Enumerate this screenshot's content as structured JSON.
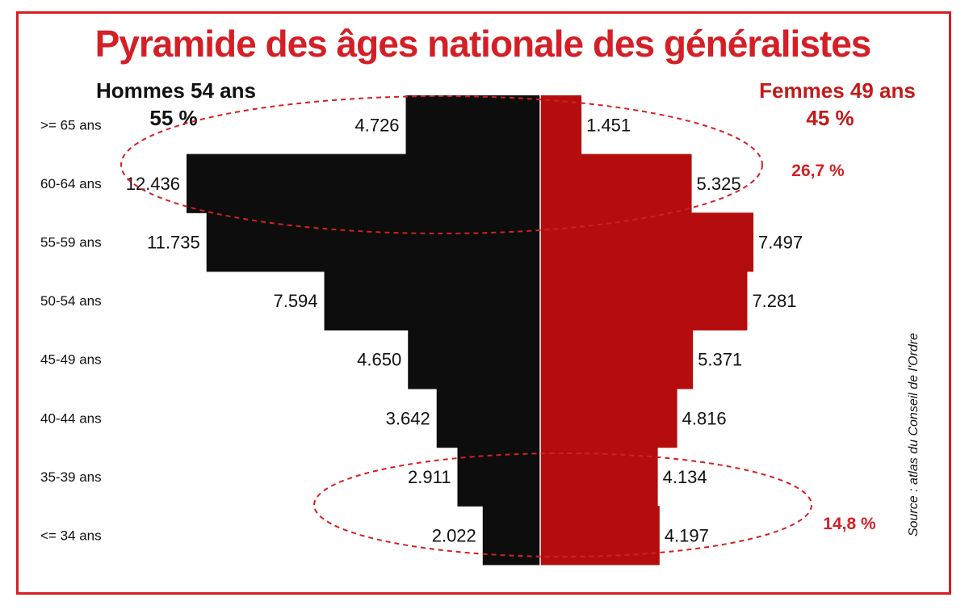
{
  "chart_data": {
    "type": "bar",
    "title": "Pyramide des âges nationale des généralistes",
    "categories": [
      ">= 65 ans",
      "60-64 ans",
      "55-59 ans",
      "50-54 ans",
      "45-49 ans",
      "40-44 ans",
      "35-39 ans",
      "<= 34 ans"
    ],
    "series": [
      {
        "name": "Hommes",
        "values": [
          4726,
          12436,
          11735,
          7594,
          4650,
          3642,
          2911,
          2022
        ],
        "labels": [
          "4.726",
          "12.436",
          "11.735",
          "7.594",
          "4.650",
          "3.642",
          "2.911",
          "2.022"
        ]
      },
      {
        "name": "Femmes",
        "values": [
          1451,
          5325,
          7497,
          7281,
          5371,
          4816,
          4134,
          4197
        ],
        "labels": [
          "1.451",
          "5.325",
          "7.497",
          "7.281",
          "5.371",
          "4.816",
          "4.134",
          "4.197"
        ]
      }
    ],
    "men_heading": "Hommes 54 ans",
    "men_share": "55 %",
    "women_heading": "Femmes 49 ans",
    "women_share": "45 %",
    "annotations": [
      "26,7 %",
      "14,8 %"
    ],
    "source": "Source : atlas du Conseil de l'Ordre",
    "colors": {
      "men": "#0d0d0d",
      "women": "#b50d0d",
      "accent": "#d41f26"
    }
  }
}
